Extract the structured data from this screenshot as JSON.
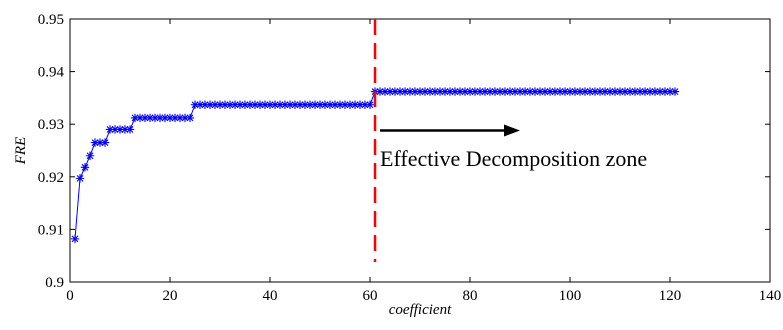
{
  "chart_data": {
    "type": "line",
    "title": "",
    "xlabel": "coefficient",
    "ylabel": "FRE",
    "xlim": [
      0,
      140
    ],
    "ylim": [
      0.9,
      0.95
    ],
    "x_ticks": [
      0,
      20,
      40,
      60,
      80,
      100,
      120,
      140
    ],
    "x_tick_labels": [
      "0",
      "20",
      "40",
      "60",
      "80",
      "100",
      "120",
      "140"
    ],
    "y_ticks": [
      0.9,
      0.91,
      0.92,
      0.93,
      0.94,
      0.95
    ],
    "y_tick_labels": [
      "0.9",
      "0.91",
      "0.92",
      "0.93",
      "0.94",
      "0.95"
    ],
    "grid": false,
    "series": [
      {
        "color": "#0000ff",
        "marker": "star",
        "x": [
          1,
          2,
          3,
          4,
          5,
          6,
          7,
          8,
          9,
          10,
          11,
          12,
          13,
          14,
          15,
          16,
          17,
          18,
          19,
          20,
          21,
          22,
          23,
          24,
          25,
          26,
          27,
          28,
          29,
          30,
          31,
          32,
          33,
          34,
          35,
          36,
          37,
          38,
          39,
          40,
          41,
          42,
          43,
          44,
          45,
          46,
          47,
          48,
          49,
          50,
          51,
          52,
          53,
          54,
          55,
          56,
          57,
          58,
          59,
          60,
          61,
          62,
          63,
          64,
          65,
          66,
          67,
          68,
          69,
          70,
          71,
          72,
          73,
          74,
          75,
          76,
          77,
          78,
          79,
          80,
          81,
          82,
          83,
          84,
          85,
          86,
          87,
          88,
          89,
          90,
          91,
          92,
          93,
          94,
          95,
          96,
          97,
          98,
          99,
          100,
          101,
          102,
          103,
          104,
          105,
          106,
          107,
          108,
          109,
          110,
          111,
          112,
          113,
          114,
          115,
          116,
          117,
          118,
          119,
          120,
          121
        ],
        "y": [
          0.9082,
          0.9197,
          0.9218,
          0.924,
          0.9265,
          0.9265,
          0.9265,
          0.929,
          0.929,
          0.929,
          0.929,
          0.929,
          0.9312,
          0.9312,
          0.9312,
          0.9312,
          0.9312,
          0.9312,
          0.9312,
          0.9312,
          0.9312,
          0.9312,
          0.9312,
          0.9312,
          0.9337,
          0.9337,
          0.9337,
          0.9337,
          0.9337,
          0.9337,
          0.9337,
          0.9337,
          0.9337,
          0.9337,
          0.9337,
          0.9337,
          0.9337,
          0.9337,
          0.9337,
          0.9337,
          0.9337,
          0.9337,
          0.9337,
          0.9337,
          0.9337,
          0.9337,
          0.9337,
          0.9337,
          0.9337,
          0.9337,
          0.9337,
          0.9337,
          0.9337,
          0.9337,
          0.9337,
          0.9337,
          0.9337,
          0.9337,
          0.9337,
          0.9337,
          0.9362,
          0.9362,
          0.9362,
          0.9362,
          0.9362,
          0.9362,
          0.9362,
          0.9362,
          0.9362,
          0.9362,
          0.9362,
          0.9362,
          0.9362,
          0.9362,
          0.9362,
          0.9362,
          0.9362,
          0.9362,
          0.9362,
          0.9362,
          0.9362,
          0.9362,
          0.9362,
          0.9362,
          0.9362,
          0.9362,
          0.9362,
          0.9362,
          0.9362,
          0.9362,
          0.9362,
          0.9362,
          0.9362,
          0.9362,
          0.9362,
          0.9362,
          0.9362,
          0.9362,
          0.9362,
          0.9362,
          0.9362,
          0.9362,
          0.9362,
          0.9362,
          0.9362,
          0.9362,
          0.9362,
          0.9362,
          0.9362,
          0.9362,
          0.9362,
          0.9362,
          0.9362,
          0.9362,
          0.9362,
          0.9362,
          0.9362,
          0.9362,
          0.9362,
          0.9362,
          0.9362
        ]
      }
    ],
    "annotations": {
      "divider": {
        "x": 61,
        "color": "#ff0000",
        "style": "dashed"
      },
      "arrow": {
        "x_start": 62,
        "x_end": 90,
        "y": 0.9288,
        "color": "#000000"
      },
      "text": {
        "label": "Effective Decomposition zone",
        "x": 62,
        "y": 0.9221
      }
    }
  }
}
